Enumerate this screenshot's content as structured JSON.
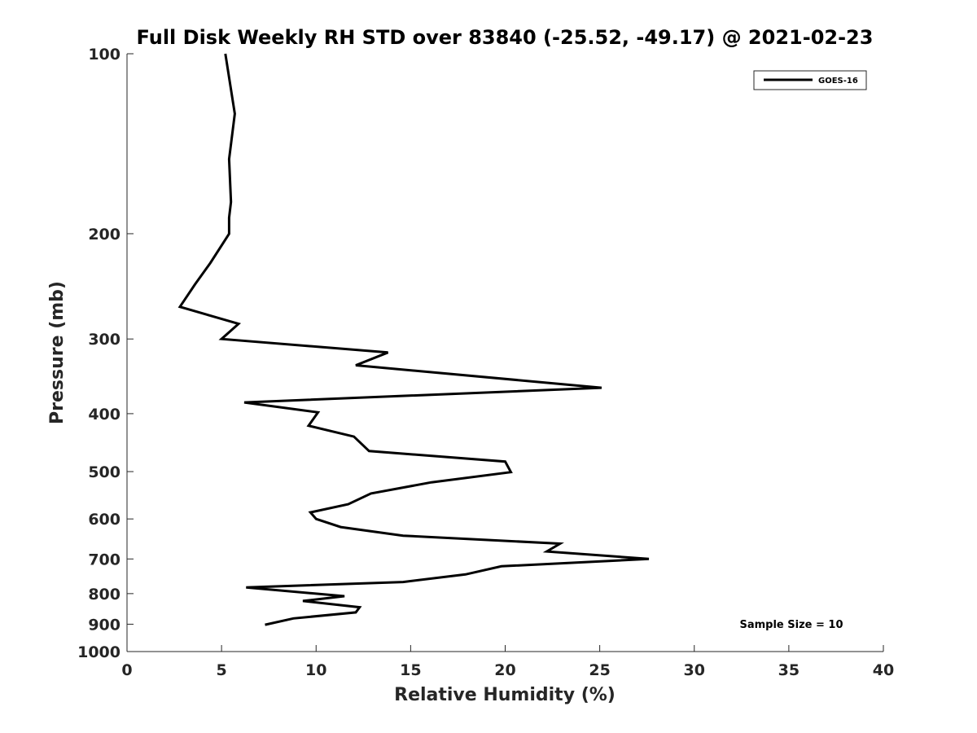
{
  "chart_data": {
    "type": "line",
    "title": "Full Disk Weekly RH STD over 83840 (-25.52, -49.17) @ 2021-02-23",
    "xlabel": "Relative Humidity (%)",
    "ylabel": "Pressure (mb)",
    "xlim": [
      0,
      40
    ],
    "ylim": [
      100,
      1000
    ],
    "yscale": "log",
    "y_reversed": true,
    "x_ticks": [
      0,
      5,
      10,
      15,
      20,
      25,
      30,
      35,
      40
    ],
    "y_ticks": [
      100,
      200,
      300,
      400,
      500,
      600,
      700,
      800,
      900,
      1000
    ],
    "legend": {
      "position": "top-right",
      "entries": [
        "GOES-16"
      ]
    },
    "annotation": "Sample Size = 10",
    "series": [
      {
        "name": "GOES-16",
        "color": "#000000",
        "x": [
          5.2,
          5.7,
          5.4,
          5.5,
          5.4,
          5.4,
          4.4,
          3.6,
          2.8,
          5.9,
          5.0,
          13.8,
          12.1,
          25.1,
          6.2,
          10.1,
          9.6,
          12.0,
          12.8,
          20.0,
          20.3,
          16.1,
          12.9,
          11.7,
          9.7,
          10.0,
          11.3,
          14.6,
          22.9,
          22.2,
          27.6,
          19.8,
          17.9,
          14.6,
          6.3,
          11.5,
          9.3,
          12.3,
          12.1,
          8.8,
          7.3
        ],
        "y": [
          100,
          126,
          150,
          177,
          188,
          200,
          224,
          243,
          265,
          283,
          300,
          316,
          332,
          362,
          383,
          398,
          419,
          437,
          462,
          481,
          501,
          521,
          544,
          567,
          585,
          600,
          619,
          640,
          660,
          680,
          700,
          720,
          743,
          765,
          781,
          808,
          823,
          843,
          860,
          880,
          902
        ]
      }
    ]
  }
}
